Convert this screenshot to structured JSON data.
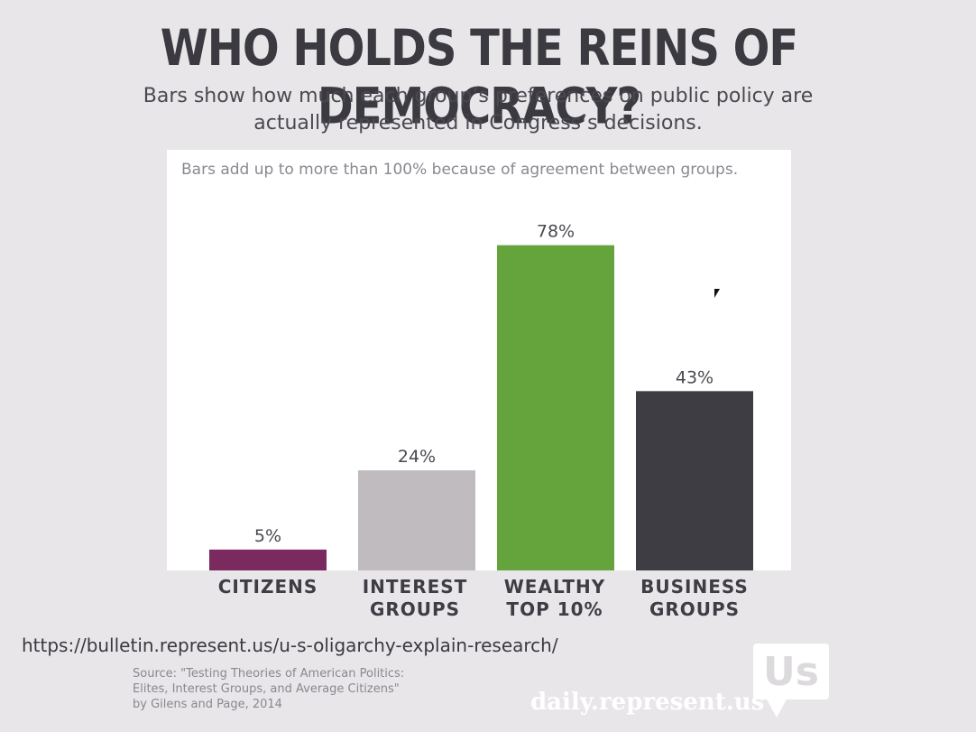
{
  "chart_data": {
    "type": "bar",
    "title": "WHO HOLDS THE REINS OF DEMOCRACY?",
    "subtitle": "Bars show how much each group’s preferences on public policy are actually represented in Congress’s decisions.",
    "note": "Bars add up to more than 100% because of agreement between groups.",
    "categories": [
      "CITIZENS",
      "INTEREST GROUPS",
      "WEALTHY TOP 10%",
      "BUSINESS GROUPS"
    ],
    "values": [
      5,
      24,
      78,
      43
    ],
    "value_labels": [
      "5%",
      "24%",
      "78%",
      "43%"
    ],
    "colors": [
      "#7a2a5f",
      "#bfbbbf",
      "#65a43d",
      "#3e3d44"
    ],
    "ylim": [
      0,
      100
    ],
    "xlabel": "",
    "ylabel": "",
    "grid": false
  },
  "url": "https://bulletin.represent.us/u-s-oligarchy-explain-research/",
  "source": "Source: \"Testing Theories of American Politics:\nElites, Interest Groups, and Average Citizens\"\nby Gilens and Page, 2014",
  "logo": {
    "mark": "Us",
    "brand": "daily.represent.us"
  }
}
